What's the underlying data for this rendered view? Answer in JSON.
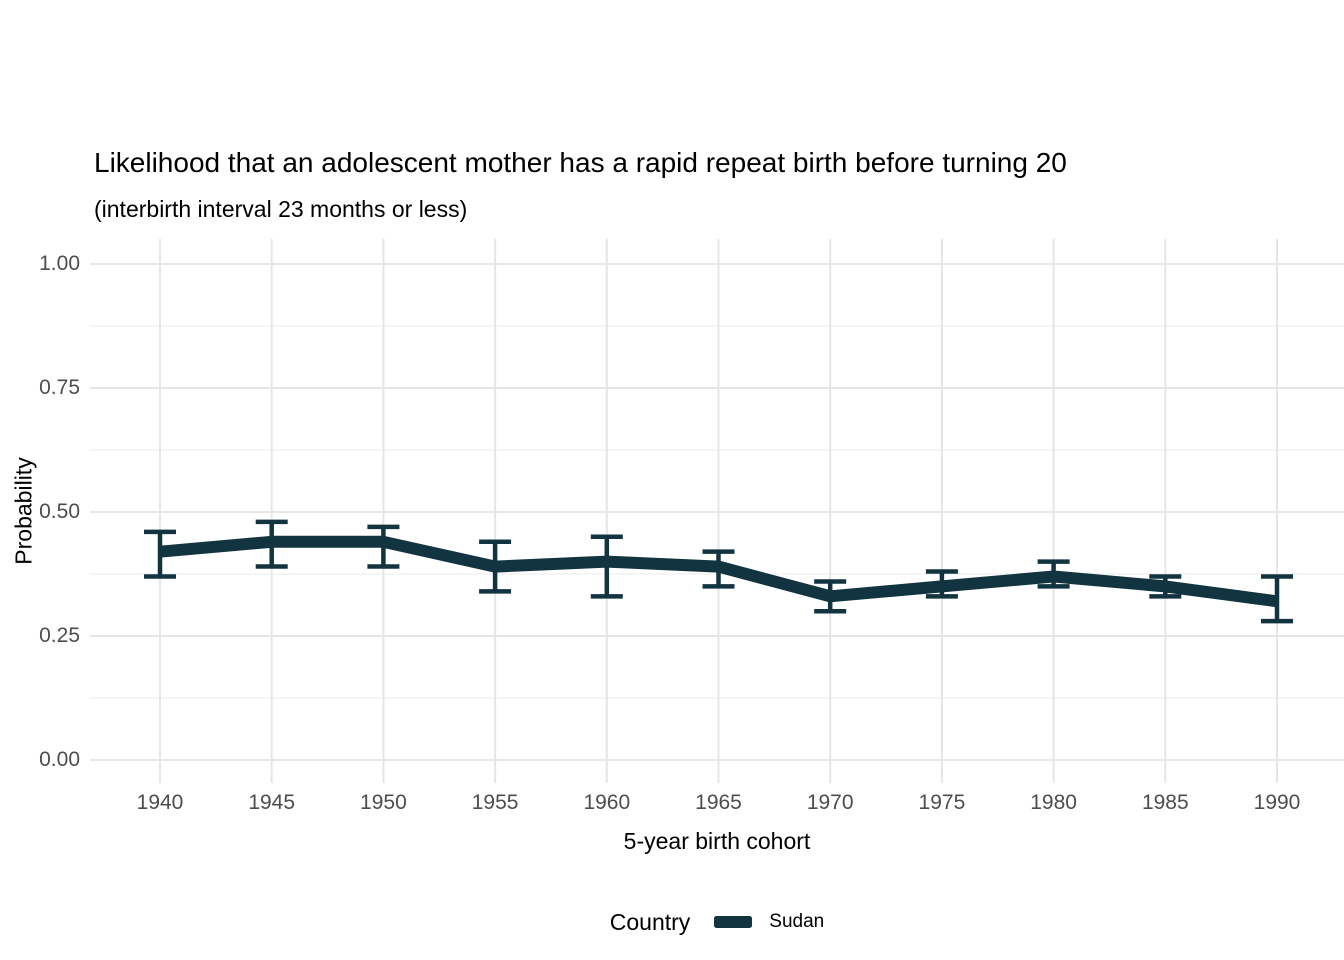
{
  "chart_data": {
    "type": "line",
    "title": "Likelihood that an adolescent mother has a rapid repeat birth before turning 20",
    "subtitle": "(interbirth interval 23 months or less)",
    "xlabel": "5-year birth cohort",
    "ylabel": "Probability",
    "categories": [
      1940,
      1945,
      1950,
      1955,
      1960,
      1965,
      1970,
      1975,
      1980,
      1985,
      1990
    ],
    "series": [
      {
        "name": "Sudan",
        "color": "#123340",
        "values": [
          0.42,
          0.44,
          0.44,
          0.39,
          0.4,
          0.39,
          0.33,
          0.35,
          0.37,
          0.35,
          0.32
        ],
        "ci_lower": [
          0.37,
          0.39,
          0.39,
          0.34,
          0.33,
          0.35,
          0.3,
          0.33,
          0.35,
          0.33,
          0.28
        ],
        "ci_upper": [
          0.46,
          0.48,
          0.47,
          0.44,
          0.45,
          0.42,
          0.36,
          0.38,
          0.4,
          0.37,
          0.37
        ]
      }
    ],
    "ylim": [
      0,
      1
    ],
    "y_ticks": {
      "values": [
        0,
        0.25,
        0.5,
        0.75,
        1
      ],
      "labels": [
        "0.00",
        "0.25",
        "0.50",
        "0.75",
        "1.00"
      ]
    },
    "y_minor_ticks": [
      0.125,
      0.375,
      0.625,
      0.875
    ],
    "legend": {
      "title": "Country",
      "position": "bottom"
    },
    "grid": {
      "major_color": "#e6e6e6",
      "minor_color": "#efefef",
      "background": "#ffffff"
    }
  }
}
